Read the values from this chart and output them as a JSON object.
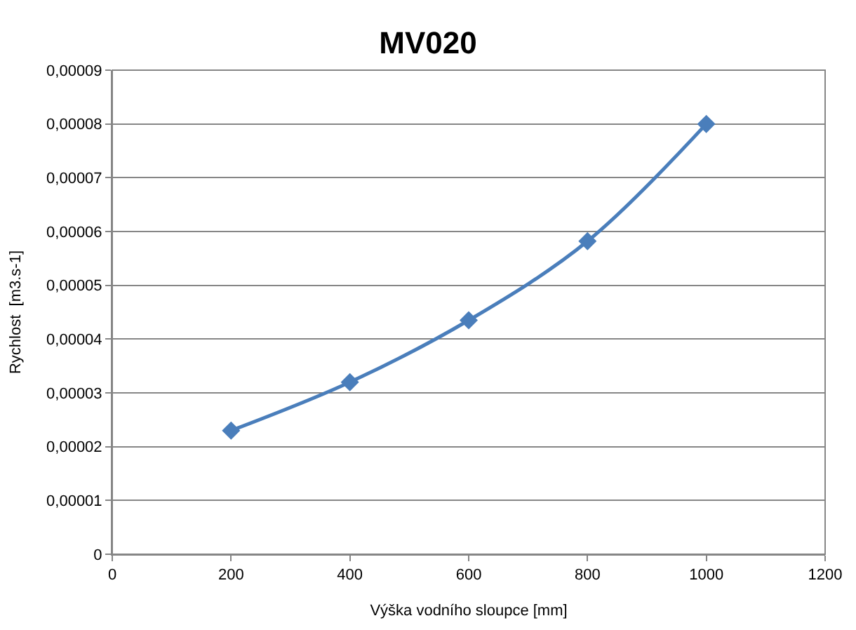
{
  "chart_data": {
    "type": "line",
    "title": "MV020",
    "xlabel": "Výška vodního sloupce [mm]",
    "ylabel": "Rychlost  [m3.s-1]",
    "x": [
      200,
      400,
      600,
      800,
      1000
    ],
    "series": [
      {
        "color": "#4a7ebb",
        "values": [
          2.3e-05,
          3.2e-05,
          4.35e-05,
          5.82e-05,
          8e-05
        ]
      }
    ],
    "xlim": [
      0,
      1200
    ],
    "xticks": [
      0,
      200,
      400,
      600,
      800,
      1000,
      1200
    ],
    "ylim": [
      0,
      9e-05
    ],
    "yticks": [
      0,
      {
        "value": 1e-05,
        "label": "0,00001"
      },
      {
        "value": 2e-05,
        "label": "0,00002"
      },
      {
        "value": 3e-05,
        "label": "0,00003"
      },
      {
        "value": 4e-05,
        "label": "0,00004"
      },
      {
        "value": 5e-05,
        "label": "0,00005"
      },
      {
        "value": 6e-05,
        "label": "0,00006"
      },
      {
        "value": 7e-05,
        "label": "0,00007"
      },
      {
        "value": 8e-05,
        "label": "0,00008"
      },
      {
        "value": 9e-05,
        "label": "0,00009"
      }
    ],
    "grid": "y",
    "legend": false,
    "marker": "diamond",
    "line_style": "solid"
  }
}
